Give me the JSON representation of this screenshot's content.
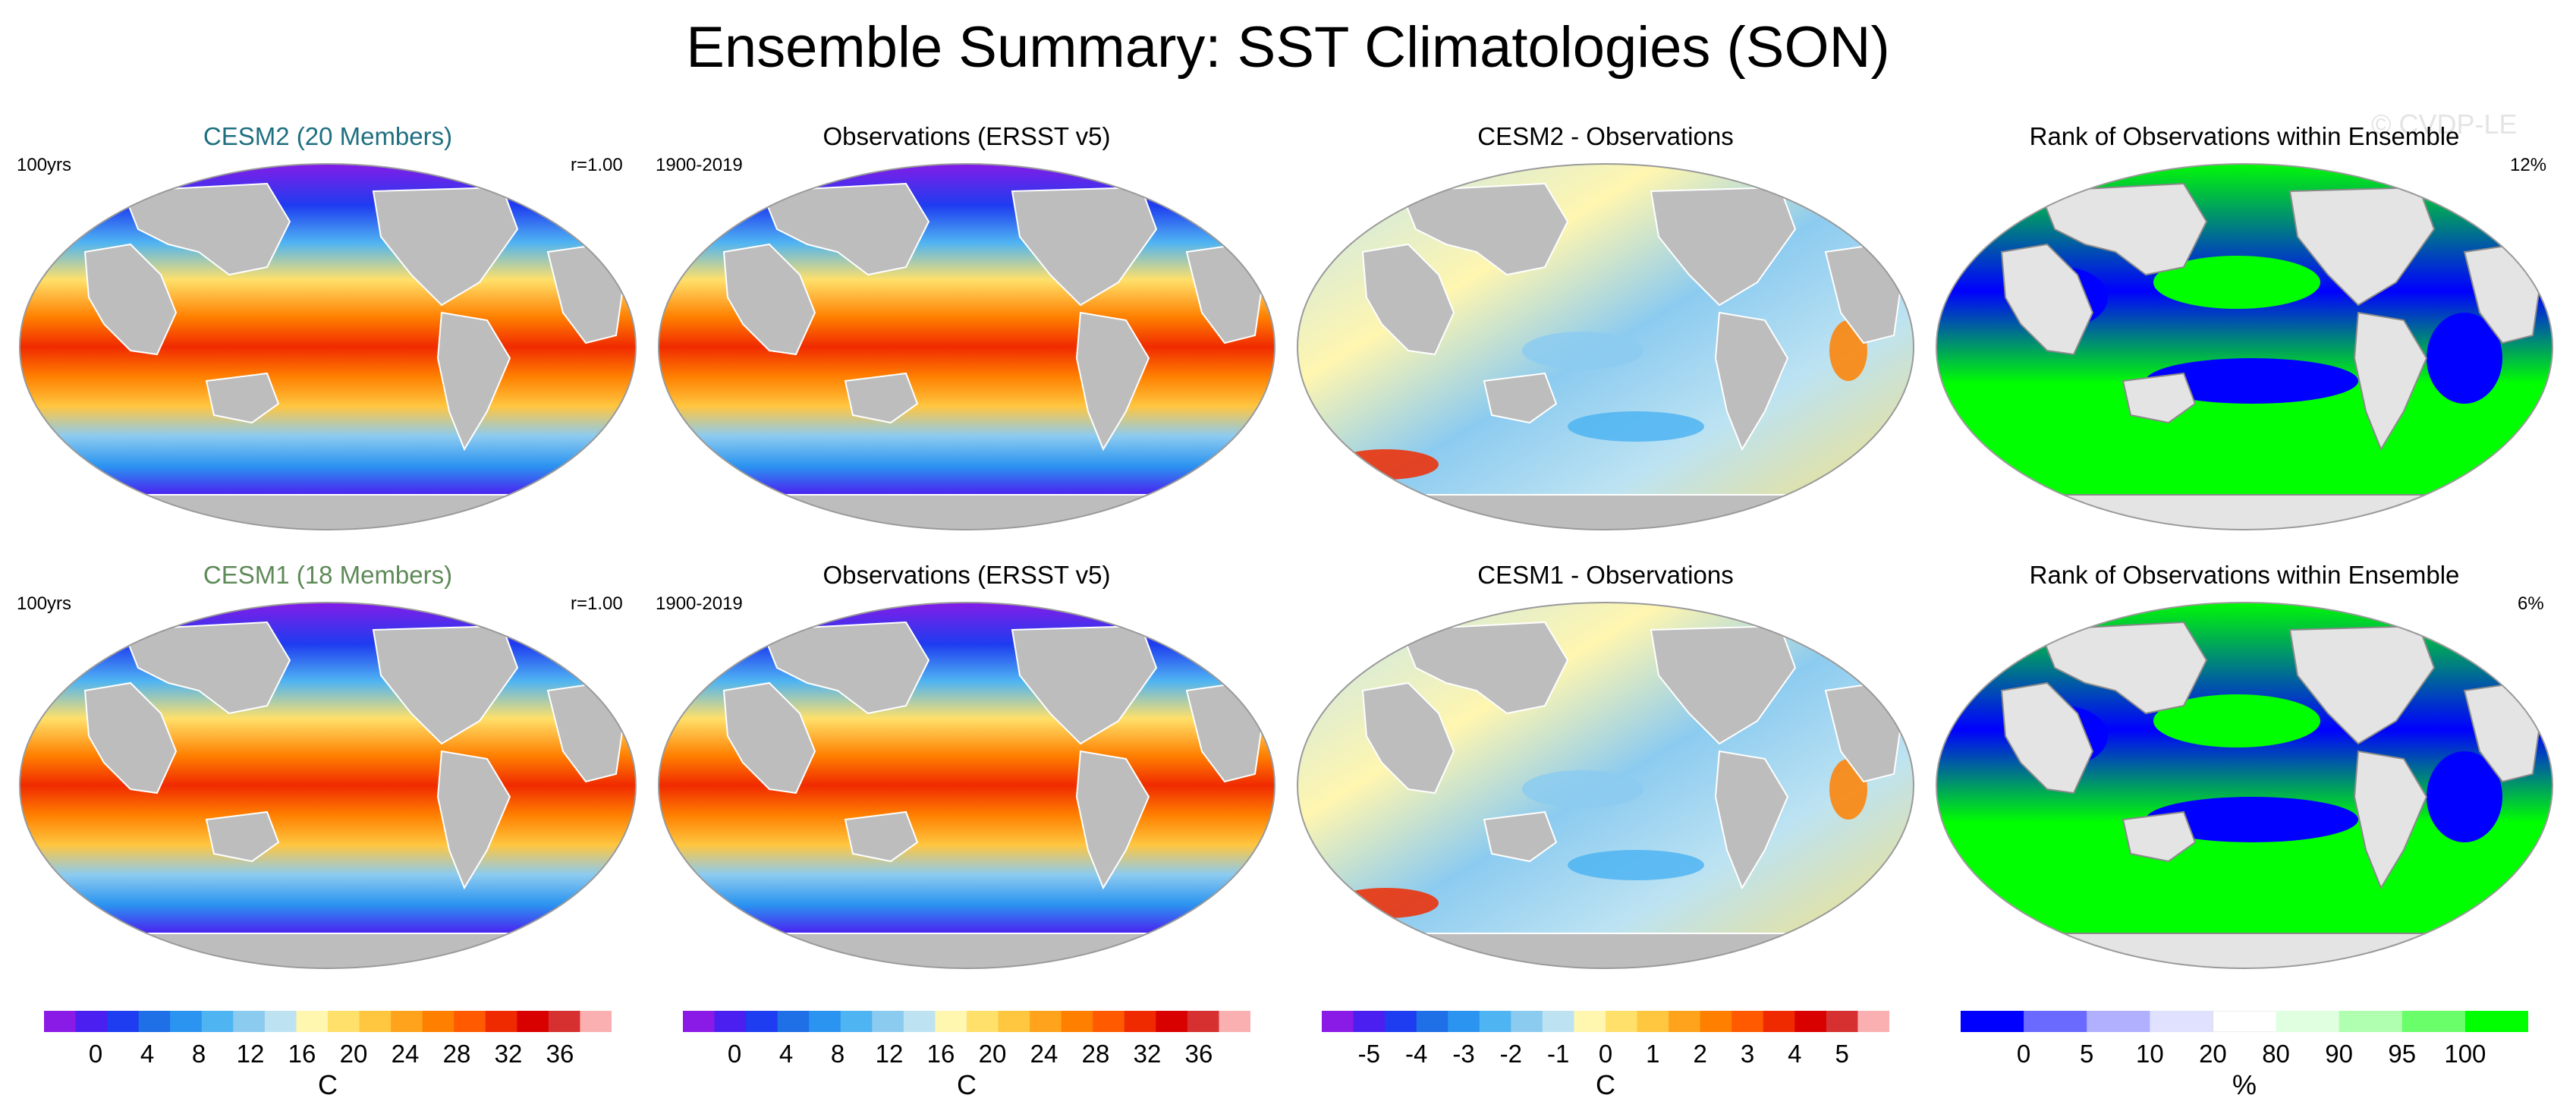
{
  "title": "Ensemble Summary: SST Climatologies (SON)",
  "watermark": "© CVDP-LE",
  "panels": [
    {
      "title": "CESM2 (20 Members)",
      "title_color": "#1f6f80",
      "left": "100yrs",
      "right": "r=1.00",
      "kind": "sst"
    },
    {
      "title": "Observations (ERSST v5)",
      "title_color": "#000000",
      "left": "1900-2019",
      "right": "",
      "kind": "sst"
    },
    {
      "title": "CESM2 - Observations",
      "title_color": "#000000",
      "left": "",
      "right": "",
      "kind": "diff"
    },
    {
      "title": "Rank of Observations within Ensemble",
      "title_color": "#000000",
      "left": "",
      "right": "12%",
      "kind": "rank"
    },
    {
      "title": "CESM1 (18 Members)",
      "title_color": "#5e8a58",
      "left": "100yrs",
      "right": "r=1.00",
      "kind": "sst"
    },
    {
      "title": "Observations (ERSST v5)",
      "title_color": "#000000",
      "left": "1900-2019",
      "right": "",
      "kind": "sst"
    },
    {
      "title": "CESM1 - Observations",
      "title_color": "#000000",
      "left": "",
      "right": "",
      "kind": "diff"
    },
    {
      "title": "Rank of Observations within Ensemble",
      "title_color": "#000000",
      "left": "",
      "right": "6%",
      "kind": "rank"
    }
  ],
  "colorbars": [
    {
      "unit": "C",
      "labels": [
        "0",
        "4",
        "8",
        "12",
        "16",
        "20",
        "24",
        "28",
        "32",
        "36"
      ],
      "colors": [
        "#8a1ae6",
        "#4a1ff0",
        "#1e3cf0",
        "#1f6fe6",
        "#2b94f0",
        "#4fb4f2",
        "#8ccbf0",
        "#bde3f2",
        "#fff6b0",
        "#ffe06a",
        "#ffc640",
        "#ffa31c",
        "#ff8000",
        "#ff5a00",
        "#f02a00",
        "#d90000",
        "#d63030",
        "#fab0b0"
      ]
    },
    {
      "unit": "C",
      "labels": [
        "0",
        "4",
        "8",
        "12",
        "16",
        "20",
        "24",
        "28",
        "32",
        "36"
      ],
      "colors": [
        "#8a1ae6",
        "#4a1ff0",
        "#1e3cf0",
        "#1f6fe6",
        "#2b94f0",
        "#4fb4f2",
        "#8ccbf0",
        "#bde3f2",
        "#fff6b0",
        "#ffe06a",
        "#ffc640",
        "#ffa31c",
        "#ff8000",
        "#ff5a00",
        "#f02a00",
        "#d90000",
        "#d63030",
        "#fab0b0"
      ]
    },
    {
      "unit": "C",
      "labels": [
        "-5",
        "-4",
        "-3",
        "-2",
        "-1",
        "0",
        "1",
        "2",
        "3",
        "4",
        "5"
      ],
      "colors": [
        "#8a1ae6",
        "#4a1ff0",
        "#1e3cf0",
        "#1f6fe6",
        "#2b94f0",
        "#4fb4f2",
        "#8ccbf0",
        "#bde3f2",
        "#fff6b0",
        "#ffe06a",
        "#ffc640",
        "#ffa31c",
        "#ff8000",
        "#ff5a00",
        "#f02a00",
        "#d90000",
        "#d63030",
        "#fab0b0"
      ]
    },
    {
      "unit": "%",
      "labels": [
        "0",
        "5",
        "10",
        "20",
        "80",
        "90",
        "95",
        "100"
      ],
      "colors": [
        "#0000ff",
        "#6a6aff",
        "#b0b0ff",
        "#e0e0ff",
        "#ffffff",
        "#e0ffe0",
        "#b0ffb0",
        "#6aff6a",
        "#00ff00"
      ]
    }
  ]
}
